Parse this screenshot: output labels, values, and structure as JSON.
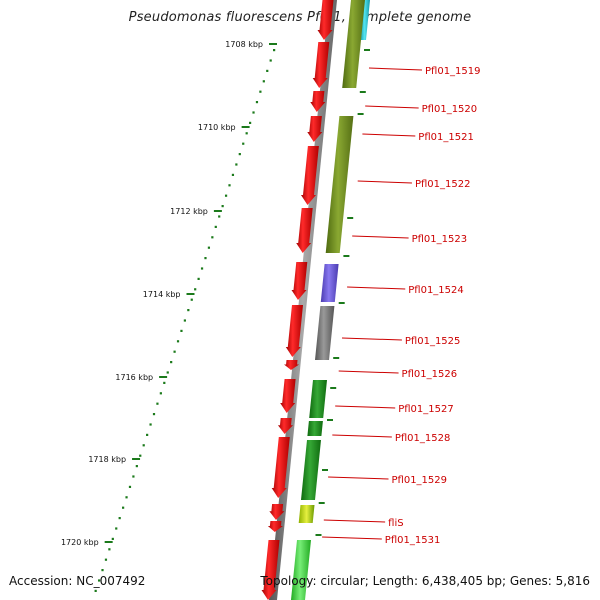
{
  "title": "Pseudomonas fluorescens Pf0-1, complete genome",
  "footer": {
    "accession": "Accession: NC_007492",
    "topology": "Topology: circular; Length: 6,438,405 bp; Genes: 5,816"
  },
  "ticks": [
    {
      "label": "1708 kbp"
    },
    {
      "label": "1710 kbp"
    },
    {
      "label": "1712 kbp"
    },
    {
      "label": "1714 kbp"
    },
    {
      "label": "1716 kbp"
    },
    {
      "label": "1718 kbp"
    },
    {
      "label": "1720 kbp"
    }
  ],
  "genes": [
    {
      "label": "Pfl01_1519"
    },
    {
      "label": "Pfl01_1520"
    },
    {
      "label": "Pfl01_1521"
    },
    {
      "label": "Pfl01_1522"
    },
    {
      "label": "Pfl01_1523"
    },
    {
      "label": "Pfl01_1524"
    },
    {
      "label": "Pfl01_1525"
    },
    {
      "label": "Pfl01_1526"
    },
    {
      "label": "Pfl01_1527"
    },
    {
      "label": "Pfl01_1528"
    },
    {
      "label": "Pfl01_1529"
    },
    {
      "label": "fliS"
    },
    {
      "label": "Pfl01_1531"
    }
  ],
  "colors": {
    "gene_red": "#e60000",
    "label_red": "#cc0000",
    "olive": "#6b8a1e",
    "green": "#1f8f1f",
    "light_green": "#44cc44",
    "purple": "#6a5acd",
    "gray": "#777777",
    "cyan": "#22c6d6",
    "tick_green": "#1b7a1b"
  }
}
